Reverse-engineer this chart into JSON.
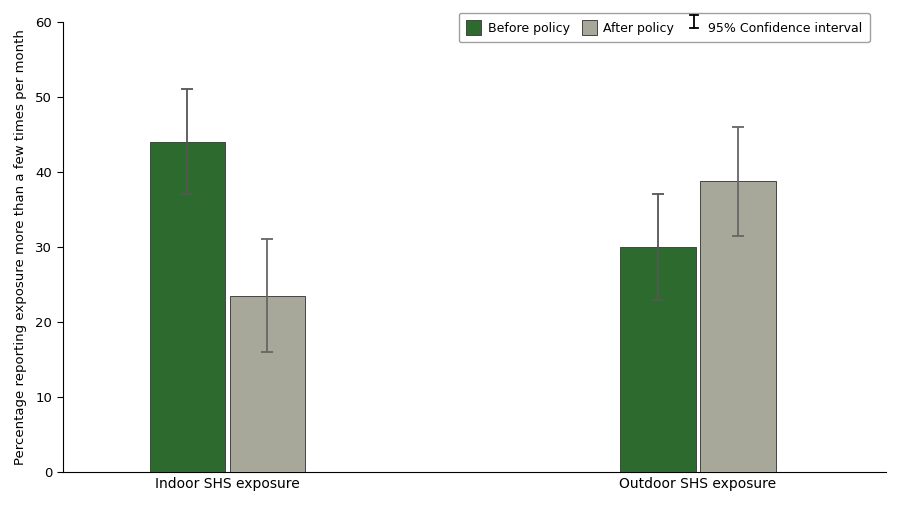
{
  "groups": [
    "Indoor SHS exposure",
    "Outdoor SHS exposure"
  ],
  "before_values": [
    44.0,
    30.0
  ],
  "after_values": [
    23.5,
    38.8
  ],
  "before_ci_lower": [
    37.0,
    23.0
  ],
  "before_ci_upper": [
    51.0,
    37.0
  ],
  "after_ci_lower": [
    16.0,
    31.5
  ],
  "after_ci_upper": [
    31.0,
    46.0
  ],
  "before_color": "#2d6a2d",
  "after_color": "#a8a89a",
  "before_ecolor": "#555555",
  "after_ecolor": "#666666",
  "bar_edge_color": "#444444",
  "ylabel": "Percentage reporting exposure more than a few times per month",
  "ylim": [
    0,
    60
  ],
  "yticks": [
    0,
    10,
    20,
    30,
    40,
    50,
    60
  ],
  "legend_labels": [
    "Before policy",
    "After policy",
    "95% Confidence interval"
  ],
  "bar_width": 0.32,
  "title": "",
  "background_color": "#ffffff",
  "figsize": [
    9.0,
    5.05
  ],
  "dpi": 100
}
